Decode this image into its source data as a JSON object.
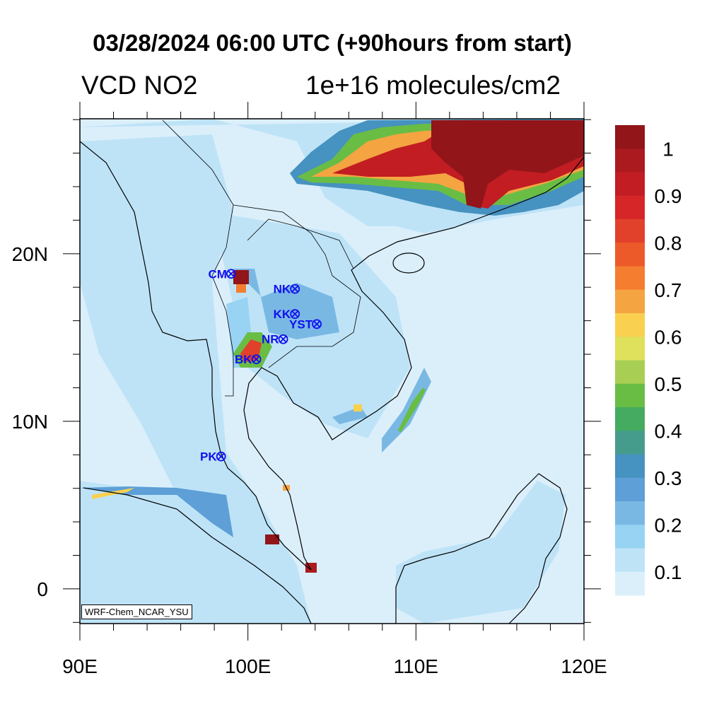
{
  "title": "03/28/2024 06:00 UTC (+90hours from start)",
  "subtitle_left": "VCD NO2",
  "subtitle_right": "1e+16 molecules/cm2",
  "watermark": "WRF-Chem_NCAR_YSU",
  "x_ticks": [
    "90E",
    "100E",
    "110E",
    "120E"
  ],
  "y_ticks": [
    "0",
    "10N",
    "20N"
  ],
  "map_extent": {
    "lon": [
      90,
      120
    ],
    "lat": [
      -2.07,
      28.05
    ]
  },
  "cities": [
    {
      "label": "CM",
      "lon": 99.0,
      "lat": 18.8
    },
    {
      "label": "NK",
      "lon": 102.8,
      "lat": 17.9
    },
    {
      "label": "KK",
      "lon": 102.8,
      "lat": 16.4
    },
    {
      "label": "YST",
      "lon": 104.1,
      "lat": 15.8
    },
    {
      "label": "NR",
      "lon": 102.1,
      "lat": 14.9
    },
    {
      "label": "BK",
      "lon": 100.5,
      "lat": 13.7
    },
    {
      "label": "PK",
      "lon": 98.4,
      "lat": 7.9
    }
  ],
  "colorbar": {
    "labels": [
      "1",
      "0.9",
      "0.8",
      "0.7",
      "0.6",
      "0.5",
      "0.4",
      "0.3",
      "0.2",
      "0.1"
    ],
    "colors": [
      "#921519",
      "#ab1a1f",
      "#c11d22",
      "#d62628",
      "#e1412b",
      "#ec5a29",
      "#f47d30",
      "#f5a442",
      "#f9d050",
      "#dfe05b",
      "#a8cf54",
      "#69bd45",
      "#45ab61",
      "#469c8c",
      "#4692c0",
      "#5d9fd6",
      "#7ab8e4",
      "#98d3f4",
      "#bee3f7",
      "#dbeffb"
    ]
  }
}
